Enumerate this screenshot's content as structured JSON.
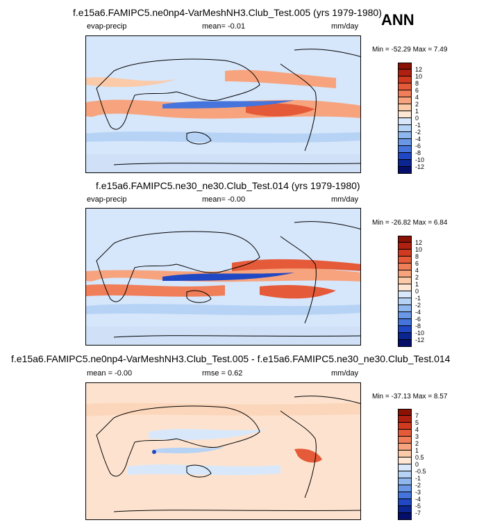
{
  "ann_label": "ANN",
  "panels": [
    {
      "title": "f.e15a6.FAMIPC5.ne0np4-VarMeshNH3.Club_Test.005 (yrs 1979-1980)",
      "left_label": "evap-precip",
      "center_label": "mean=  -0.01",
      "units": "mm/day",
      "minmax": "Min = -52.29 Max =   7.49",
      "colorbar_labels": [
        "12",
        "10",
        "8",
        "6",
        "4",
        "2",
        "1",
        "0",
        "-1",
        "-2",
        "-4",
        "-6",
        "-8",
        "-10",
        "-12"
      ],
      "colorbar_colors": [
        "#8a1205",
        "#b02010",
        "#cf3a20",
        "#e55a38",
        "#f07e58",
        "#f7a47e",
        "#fbcaa8",
        "#fde6d4",
        "#d8e8fa",
        "#b6d3f5",
        "#8fb7ef",
        "#6a98e6",
        "#4574dc",
        "#2148c4",
        "#0b2690",
        "#050f6a"
      ]
    },
    {
      "title": "f.e15a6.FAMIPC5.ne30_ne30.Club_Test.014 (yrs 1979-1980)",
      "left_label": "evap-precip",
      "center_label": "mean=  -0.00",
      "units": "mm/day",
      "minmax": "Min = -26.82 Max =   6.84",
      "colorbar_labels": [
        "12",
        "10",
        "8",
        "6",
        "4",
        "2",
        "1",
        "0",
        "-1",
        "-2",
        "-4",
        "-6",
        "-8",
        "-10",
        "-12"
      ],
      "colorbar_colors": [
        "#8a1205",
        "#b02010",
        "#cf3a20",
        "#e55a38",
        "#f07e58",
        "#f7a47e",
        "#fbcaa8",
        "#fde6d4",
        "#d8e8fa",
        "#b6d3f5",
        "#8fb7ef",
        "#6a98e6",
        "#4574dc",
        "#2148c4",
        "#0b2690",
        "#050f6a"
      ]
    },
    {
      "title": "f.e15a6.FAMIPC5.ne0np4-VarMeshNH3.Club_Test.005 - f.e15a6.FAMIPC5.ne30_ne30.Club_Test.014",
      "left_label": "mean = -0.00",
      "center_label": "rmse =  0.62",
      "units": "mm/day",
      "minmax": "Min = -37.13 Max =   8.57",
      "colorbar_labels": [
        "7",
        "5",
        "4",
        "3",
        "2",
        "1",
        "0.5",
        "0",
        "-0.5",
        "-1",
        "-2",
        "-3",
        "-4",
        "-5",
        "-7"
      ],
      "colorbar_colors": [
        "#8a1205",
        "#b02010",
        "#cf3a20",
        "#e55a38",
        "#f07e58",
        "#f7a47e",
        "#fbcaa8",
        "#fde6d4",
        "#d8e8fa",
        "#b6d3f5",
        "#8fb7ef",
        "#6a98e6",
        "#4574dc",
        "#2148c4",
        "#0b2690",
        "#050f6a"
      ]
    }
  ],
  "colors": {
    "base_blue": "#d6e6fb",
    "base_peach": "#fde3cf",
    "coast": "#000000"
  }
}
